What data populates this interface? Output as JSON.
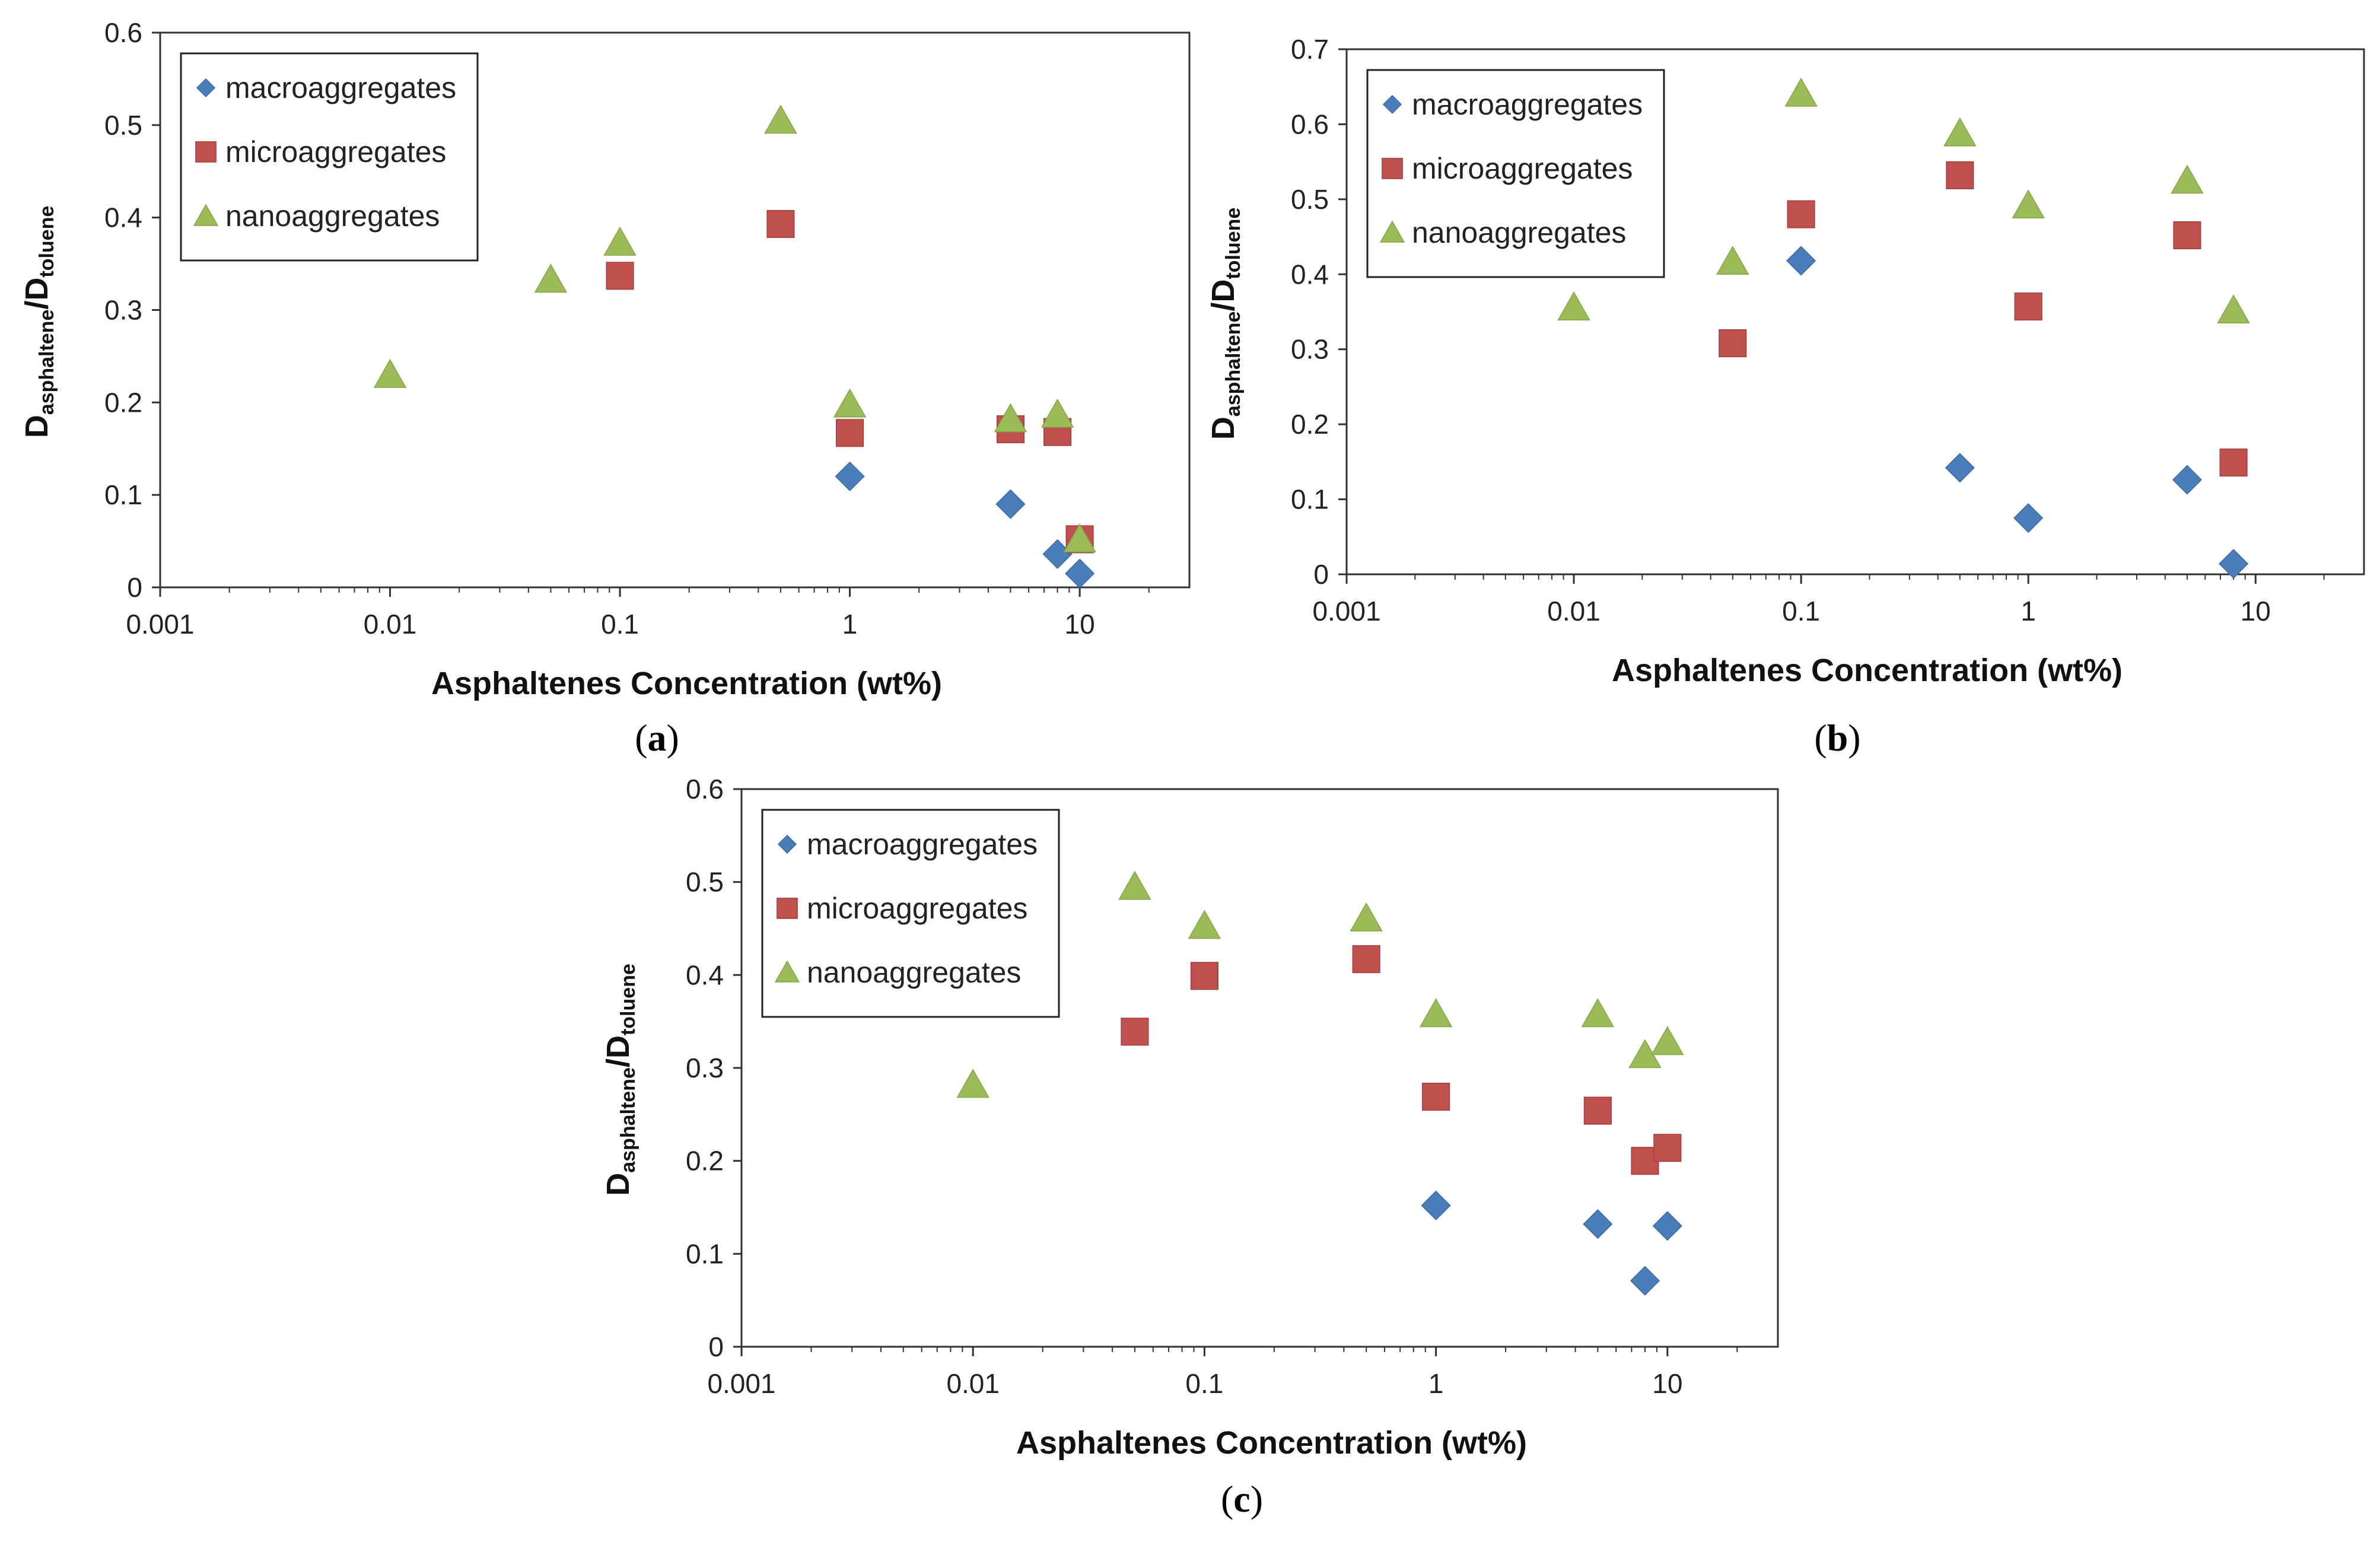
{
  "figure": {
    "marker_colors": {
      "macroaggregates": "#4a7ebb",
      "microaggregates": "#c0504d",
      "nanoaggregates": "#9bbb59"
    }
  },
  "chart_data": [
    {
      "type": "scatter",
      "panel_label": "a",
      "xlabel": "Asphaltenes Concentration (wt%)",
      "ylabel": {
        "main": "D",
        "sub1": "asphaltene",
        "slash": "/D",
        "sub2": "toluene"
      },
      "xscale": "log",
      "xlim": [
        0.001,
        30
      ],
      "ylim": [
        0,
        0.6
      ],
      "xticks": [
        0.001,
        0.01,
        0.1,
        1,
        10
      ],
      "xtick_labels": [
        "0.001",
        "0.01",
        "0.1",
        "1",
        "10"
      ],
      "yticks": [
        0,
        0.1,
        0.2,
        0.3,
        0.4,
        0.5,
        0.6
      ],
      "ytick_labels": [
        "0",
        "0.1",
        "0.2",
        "0.3",
        "0.4",
        "0.5",
        "0.6"
      ],
      "grid": false,
      "legend_position": "top-left",
      "series": [
        {
          "name": "macroaggregates",
          "marker": "diamond",
          "color": "#4a7ebb",
          "x": [
            1,
            5,
            8,
            10
          ],
          "y": [
            0.12,
            0.09,
            0.036,
            0.015
          ]
        },
        {
          "name": "microaggregates",
          "marker": "square",
          "color": "#c0504d",
          "x": [
            0.1,
            0.5,
            1,
            5,
            8,
            10
          ],
          "y": [
            0.337,
            0.393,
            0.167,
            0.171,
            0.168,
            0.052
          ]
        },
        {
          "name": "nanoaggregates",
          "marker": "triangle",
          "color": "#9bbb59",
          "x": [
            0.01,
            0.05,
            0.1,
            0.5,
            1,
            5,
            8,
            10
          ],
          "y": [
            0.23,
            0.333,
            0.373,
            0.505,
            0.198,
            0.182,
            0.187,
            0.052
          ]
        }
      ]
    },
    {
      "type": "scatter",
      "panel_label": "b",
      "xlabel": "Asphaltenes Concentration (wt%)",
      "ylabel": {
        "main": "D",
        "sub1": "asphaltene",
        "slash": "/D",
        "sub2": "toluene"
      },
      "xscale": "log",
      "xlim": [
        0.001,
        30
      ],
      "ylim": [
        0,
        0.7
      ],
      "xticks": [
        0.001,
        0.01,
        0.1,
        1,
        10
      ],
      "xtick_labels": [
        "0.001",
        "0.01",
        "0.1",
        "1",
        "10"
      ],
      "yticks": [
        0,
        0.1,
        0.2,
        0.3,
        0.4,
        0.5,
        0.6,
        0.7
      ],
      "ytick_labels": [
        "0",
        "0.1",
        "0.2",
        "0.3",
        "0.4",
        "0.5",
        "0.6",
        "0.7"
      ],
      "grid": false,
      "legend_position": "top-left",
      "series": [
        {
          "name": "macroaggregates",
          "marker": "diamond",
          "color": "#4a7ebb",
          "x": [
            0.1,
            0.5,
            1,
            5,
            8
          ],
          "y": [
            0.418,
            0.142,
            0.075,
            0.126,
            0.014
          ]
        },
        {
          "name": "microaggregates",
          "marker": "square",
          "color": "#c0504d",
          "x": [
            0.05,
            0.1,
            0.5,
            1,
            5,
            8
          ],
          "y": [
            0.308,
            0.48,
            0.532,
            0.357,
            0.452,
            0.149
          ]
        },
        {
          "name": "nanoaggregates",
          "marker": "triangle",
          "color": "#9bbb59",
          "x": [
            0.01,
            0.05,
            0.1,
            0.5,
            1,
            5,
            8
          ],
          "y": [
            0.356,
            0.417,
            0.641,
            0.588,
            0.492,
            0.525,
            0.352
          ]
        }
      ]
    },
    {
      "type": "scatter",
      "panel_label": "c",
      "xlabel": "Asphaltenes Concentration (wt%)",
      "ylabel": {
        "main": "D",
        "sub1": "asphaltene",
        "slash": "/D",
        "sub2": "toluene"
      },
      "xscale": "log",
      "xlim": [
        0.001,
        30
      ],
      "ylim": [
        0,
        0.6
      ],
      "xticks": [
        0.001,
        0.01,
        0.1,
        1,
        10
      ],
      "xtick_labels": [
        "0.001",
        "0.01",
        "0.1",
        "1",
        "10"
      ],
      "yticks": [
        0,
        0.1,
        0.2,
        0.3,
        0.4,
        0.5,
        0.6
      ],
      "ytick_labels": [
        "0",
        "0.1",
        "0.2",
        "0.3",
        "0.4",
        "0.5",
        "0.6"
      ],
      "grid": false,
      "legend_position": "top-left",
      "series": [
        {
          "name": "macroaggregates",
          "marker": "diamond",
          "color": "#4a7ebb",
          "x": [
            1,
            5,
            8,
            10
          ],
          "y": [
            0.152,
            0.132,
            0.071,
            0.13
          ]
        },
        {
          "name": "microaggregates",
          "marker": "square",
          "color": "#c0504d",
          "x": [
            0.05,
            0.1,
            0.5,
            1,
            5,
            8,
            10
          ],
          "y": [
            0.339,
            0.399,
            0.417,
            0.269,
            0.254,
            0.2,
            0.214
          ]
        },
        {
          "name": "nanoaggregates",
          "marker": "triangle",
          "color": "#9bbb59",
          "x": [
            0.01,
            0.05,
            0.1,
            0.5,
            1,
            5,
            8,
            10
          ],
          "y": [
            0.282,
            0.495,
            0.453,
            0.461,
            0.358,
            0.358,
            0.314,
            0.328
          ]
        }
      ]
    }
  ]
}
